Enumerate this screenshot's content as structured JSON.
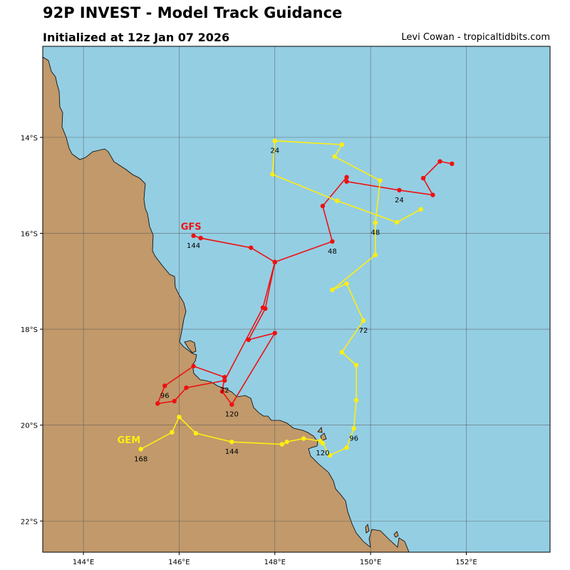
{
  "header": {
    "title": "92P INVEST - Model Track Guidance",
    "subtitle": "Initialized at 12z Jan 07 2026",
    "credit": "Levi Cowan - tropicaltidbits.com"
  },
  "colors": {
    "ocean": "#94CEE3",
    "land": "#C1996B",
    "gfs": "#EE1111",
    "gem": "#FFEE11",
    "grid": "#555555"
  },
  "map": {
    "lon_range": [
      143.15,
      153.75
    ],
    "lat_range": [
      -22.65,
      -12.1
    ],
    "lon_ticks": [
      {
        "value": 144,
        "label": "144°E"
      },
      {
        "value": 146,
        "label": "146°E"
      },
      {
        "value": 148,
        "label": "148°E"
      },
      {
        "value": 150,
        "label": "150°E"
      },
      {
        "value": 152,
        "label": "152°E"
      }
    ],
    "lat_ticks": [
      {
        "value": -14,
        "label": "14°S"
      },
      {
        "value": -16,
        "label": "16°S"
      },
      {
        "value": -18,
        "label": "18°S"
      },
      {
        "value": -20,
        "label": "20°S"
      },
      {
        "value": -22,
        "label": "22°S"
      }
    ]
  },
  "models": [
    {
      "name": "GFS",
      "color": "#EE1111",
      "label_point": [
        146.25,
        -15.85
      ],
      "track": [
        [
          151.7,
          -14.55
        ],
        [
          151.45,
          -14.5
        ],
        [
          151.1,
          -14.85
        ],
        [
          151.3,
          -15.2
        ],
        [
          150.6,
          -15.1
        ],
        [
          149.5,
          -14.92
        ],
        [
          149.5,
          -14.83
        ],
        [
          149.0,
          -15.43
        ],
        [
          149.2,
          -16.17
        ],
        [
          148.0,
          -16.6
        ],
        [
          147.8,
          -17.57
        ],
        [
          147.45,
          -18.22
        ],
        [
          148.0,
          -18.08
        ],
        [
          147.1,
          -19.57
        ],
        [
          146.9,
          -19.3
        ],
        [
          146.95,
          -19.0
        ],
        [
          146.3,
          -18.77
        ],
        [
          145.7,
          -19.18
        ],
        [
          145.55,
          -19.55
        ],
        [
          145.9,
          -19.5
        ],
        [
          146.15,
          -19.22
        ],
        [
          146.95,
          -19.07
        ],
        [
          147.75,
          -17.55
        ],
        [
          148.0,
          -16.6
        ],
        [
          147.5,
          -16.3
        ],
        [
          146.45,
          -16.1
        ],
        [
          146.3,
          -16.05
        ]
      ],
      "tau_labels": [
        {
          "text": "24",
          "lon": 150.6,
          "lat": -15.1
        },
        {
          "text": "48",
          "lon": 149.2,
          "lat": -16.17
        },
        {
          "text": "72",
          "lon": 146.95,
          "lat": -19.07
        },
        {
          "text": "96",
          "lon": 145.7,
          "lat": -19.18
        },
        {
          "text": "120",
          "lon": 147.1,
          "lat": -19.57
        },
        {
          "text": "144",
          "lon": 146.3,
          "lat": -16.05
        }
      ]
    },
    {
      "name": "GEM",
      "color": "#FFEE11",
      "label_point": [
        144.95,
        -20.3
      ],
      "track": [
        [
          151.05,
          -15.5
        ],
        [
          150.55,
          -15.77
        ],
        [
          149.3,
          -15.32
        ],
        [
          147.95,
          -14.77
        ],
        [
          148.0,
          -14.07
        ],
        [
          149.4,
          -14.15
        ],
        [
          149.25,
          -14.4
        ],
        [
          150.2,
          -14.9
        ],
        [
          150.1,
          -15.78
        ],
        [
          150.1,
          -16.45
        ],
        [
          149.2,
          -17.18
        ],
        [
          149.5,
          -17.05
        ],
        [
          149.85,
          -17.82
        ],
        [
          149.4,
          -18.48
        ],
        [
          149.7,
          -18.75
        ],
        [
          149.7,
          -19.48
        ],
        [
          149.65,
          -20.07
        ],
        [
          149.5,
          -20.47
        ],
        [
          149.15,
          -20.63
        ],
        [
          149.0,
          -20.38
        ],
        [
          148.95,
          -20.33
        ],
        [
          148.6,
          -20.28
        ],
        [
          148.25,
          -20.35
        ],
        [
          148.15,
          -20.4
        ],
        [
          147.1,
          -20.35
        ],
        [
          146.35,
          -20.17
        ],
        [
          146.0,
          -19.83
        ],
        [
          145.85,
          -20.15
        ],
        [
          145.2,
          -20.5
        ]
      ],
      "tau_labels": [
        {
          "text": "24",
          "lon": 148.0,
          "lat": -14.07
        },
        {
          "text": "48",
          "lon": 150.1,
          "lat": -15.78
        },
        {
          "text": "72",
          "lon": 149.85,
          "lat": -17.82
        },
        {
          "text": "96",
          "lon": 149.65,
          "lat": -20.07
        },
        {
          "text": "120",
          "lon": 149.0,
          "lat": -20.38
        },
        {
          "text": "144",
          "lon": 147.1,
          "lat": -20.35
        },
        {
          "text": "168",
          "lon": 145.2,
          "lat": -20.5
        }
      ]
    }
  ]
}
